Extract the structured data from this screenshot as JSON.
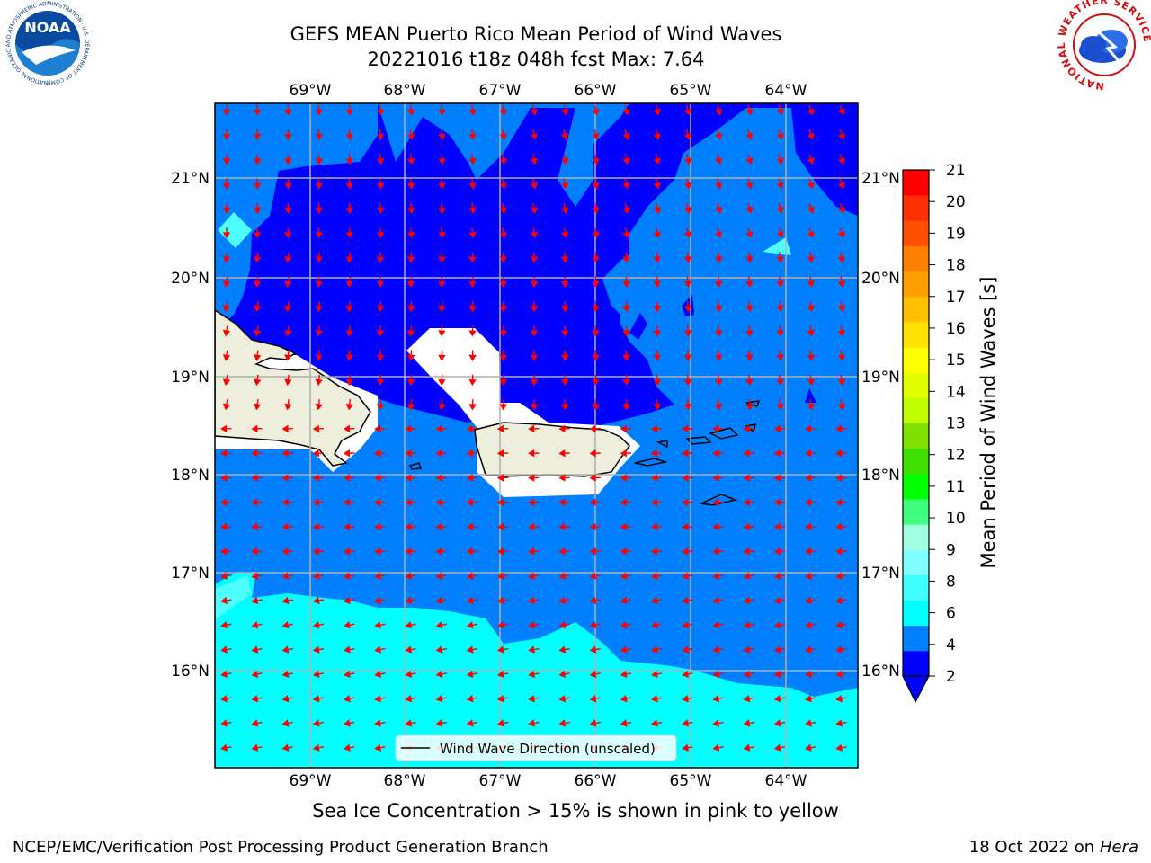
{
  "title": {
    "line1": "GEFS MEAN Puerto Rico Mean Period of Wind Waves",
    "line2": "20221016 t18z 048h fcst   Max: 7.64"
  },
  "map": {
    "lon_ticks": [
      "69°W",
      "68°W",
      "67°W",
      "66°W",
      "65°W",
      "64°W"
    ],
    "lat_ticks": [
      "21°N",
      "20°N",
      "19°N",
      "18°N",
      "17°N",
      "16°N"
    ],
    "legend_label": "Wind Wave Direction (unscaled)",
    "arrow_color": "#ff0000"
  },
  "colorbar": {
    "label": "Mean Period of Wind Waves [s]",
    "ticks": [
      "21",
      "20",
      "19",
      "18",
      "17",
      "16",
      "15",
      "14",
      "13",
      "12",
      "11",
      "10",
      "9",
      "8",
      "6",
      "4",
      "2"
    ],
    "colors": [
      "#0000ff",
      "#0080ff",
      "#00ffff",
      "#3fffff",
      "#7fffff",
      "#a0ffe0",
      "#40ff80",
      "#00ff00",
      "#40e000",
      "#80e000",
      "#c0ff00",
      "#e0ff00",
      "#ffff00",
      "#ffe000",
      "#ffc000",
      "#ffa000",
      "#ff8000",
      "#ff5000",
      "#ff3000",
      "#ff0000"
    ]
  },
  "fields": {
    "deep_color": "#0000ff",
    "mid_color": "#0080ff",
    "light_color": "#00ffff",
    "pale_color": "#4dffff",
    "land_color": "#eeeedc",
    "nodata_color": "#ffffff"
  },
  "note": "Sea Ice Concentration > 15% is shown in pink to yellow",
  "footer": {
    "left": "NCEP/EMC/Verification Post Processing Product Generation Branch",
    "date": "18 Oct 2022 on ",
    "machine": "Hera"
  },
  "logos": {
    "noaa": "NOAA",
    "noaa_ring": "NATIONAL OCEANIC AND ATMOSPHERIC ADMINISTRATION · U.S. DEPARTMENT OF COMMERCE",
    "nws_ring": "NATIONAL WEATHER SERVICE"
  }
}
